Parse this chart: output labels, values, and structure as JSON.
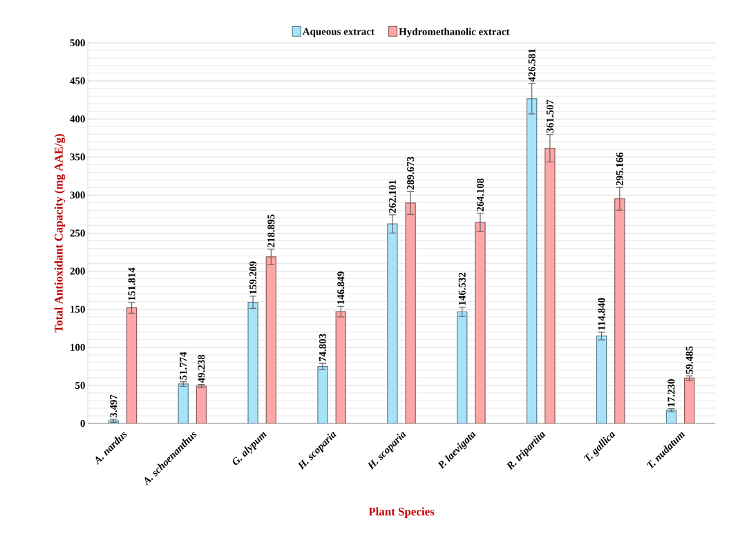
{
  "chart_data": {
    "type": "bar",
    "xlabel": "Plant Species",
    "ylabel": "Total Antioxidant Capacity (mg AAE/g)",
    "categories": [
      "A. nardus",
      "A. schoenanthus",
      "G. alypum",
      "H. scoparia",
      "H. scoparia",
      "P. laevigata",
      "R. tripartita",
      "T. gallica",
      "T. nudatum"
    ],
    "series": [
      {
        "name": "Aqueous extract",
        "color": "#a6e3fa",
        "values": [
          3.497,
          51.774,
          159.209,
          74.803,
          262.101,
          146.532,
          426.581,
          114.84,
          17.23
        ],
        "errors": [
          2,
          3,
          8,
          4,
          12,
          6,
          20,
          5,
          2
        ],
        "value_labels": [
          "3.497",
          "51.774",
          "159.209",
          "74.803",
          "262.101",
          "146.532",
          "426.581",
          "114.840",
          "17.230"
        ]
      },
      {
        "name": "Hydromethanolic extract",
        "color": "#ffa6a6",
        "values": [
          151.814,
          49.238,
          218.895,
          146.849,
          289.673,
          264.108,
          361.507,
          295.166,
          59.485
        ],
        "errors": [
          7,
          2,
          10,
          7,
          15,
          12,
          18,
          15,
          3
        ],
        "value_labels": [
          "151.814",
          "49.238",
          "218.895",
          "146.849",
          "289.673",
          "264.108",
          "361.507",
          "295.166",
          "59.485"
        ]
      }
    ],
    "ylim": [
      0,
      500
    ],
    "yticks": [
      0,
      50,
      100,
      150,
      200,
      250,
      300,
      350,
      400,
      450,
      500
    ],
    "grid": "y",
    "legend": "top"
  }
}
